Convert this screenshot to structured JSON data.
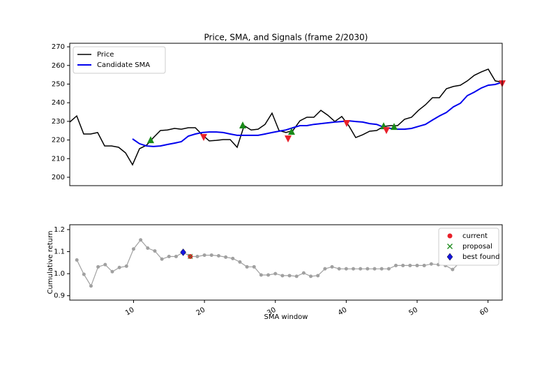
{
  "chart_data": [
    {
      "type": "line",
      "title": "Price, SMA, and Signals (frame 2/2030)",
      "x": [
        0,
        2,
        4,
        6,
        8,
        10,
        12,
        14,
        16,
        18,
        20,
        22,
        24,
        26,
        28,
        30,
        32,
        34,
        36,
        38,
        40,
        42,
        44,
        46,
        48,
        50,
        52,
        54,
        56,
        58,
        60,
        62,
        64,
        66,
        68,
        70,
        72,
        74,
        76,
        78,
        80,
        82,
        84,
        86,
        88,
        90,
        92,
        94,
        96,
        98,
        100,
        102,
        104,
        106,
        108,
        110,
        112,
        114,
        116,
        118,
        120,
        122,
        124
      ],
      "series": [
        {
          "name": "Price",
          "color": "#000000",
          "values": [
            229.6,
            232.9,
            223.2,
            223.2,
            224.0,
            216.8,
            216.8,
            216.1,
            213.1,
            206.7,
            215.3,
            217.2,
            221.3,
            225.1,
            225.4,
            226.2,
            225.8,
            226.6,
            226.6,
            222.8,
            219.5,
            219.8,
            220.2,
            220.2,
            216.1,
            227.7,
            225.4,
            225.8,
            228.4,
            234.4,
            225.1,
            224.0,
            225.1,
            230.3,
            232.2,
            232.2,
            235.9,
            233.3,
            229.9,
            232.6,
            227.7,
            221.3,
            222.8,
            224.7,
            225.1,
            227.3,
            227.7,
            227.7,
            231.1,
            232.2,
            235.9,
            238.9,
            242.7,
            242.7,
            247.5,
            248.7,
            249.4,
            251.7,
            254.7,
            256.5,
            258.0,
            251.7,
            251.0
          ]
        },
        {
          "name": "Candidate SMA",
          "color": "#0000ee",
          "values": [
            null,
            null,
            null,
            null,
            null,
            null,
            null,
            null,
            null,
            220.6,
            218.0,
            216.8,
            216.5,
            216.8,
            217.6,
            218.3,
            219.1,
            222.1,
            223.2,
            224.0,
            224.3,
            224.3,
            224.0,
            223.2,
            222.5,
            222.5,
            222.5,
            222.5,
            223.2,
            224.0,
            224.7,
            225.4,
            226.6,
            227.7,
            227.7,
            228.4,
            228.8,
            229.2,
            229.6,
            229.9,
            230.3,
            229.9,
            229.6,
            228.8,
            228.4,
            226.9,
            226.2,
            225.8,
            225.8,
            226.2,
            227.3,
            228.4,
            230.7,
            232.9,
            234.8,
            237.8,
            239.7,
            243.8,
            245.7,
            247.9,
            249.4,
            249.8,
            251.0
          ]
        }
      ],
      "signals": [
        {
          "marker": "^",
          "color": "#1a8a1a",
          "x": [
            23.2,
            49.6,
            63.6,
            90,
            93
          ],
          "values": [
            219.8,
            227.7,
            224.3,
            227.3,
            226.9
          ]
        },
        {
          "marker": "v",
          "color": "#e8202a",
          "x": [
            38.4,
            62.6,
            79.4,
            90.8,
            124
          ],
          "values": [
            221.7,
            220.9,
            229.2,
            225.4,
            250.5
          ]
        }
      ],
      "vline": {
        "x": 124,
        "color": "#cc2222"
      },
      "xlim": [
        0,
        124
      ],
      "ylim": [
        195.5,
        271.9
      ],
      "yticks": [
        200,
        210,
        220,
        230,
        240,
        250,
        260,
        270
      ],
      "legend": "upper left"
    },
    {
      "type": "line",
      "xlabel": "SMA window",
      "ylabel": "Cumulative return",
      "color": "#a0a0a0",
      "x": [
        2,
        3,
        4,
        5,
        6,
        7,
        8,
        9,
        10,
        11,
        12,
        13,
        14,
        15,
        16,
        17,
        18,
        19,
        20,
        21,
        22,
        23,
        24,
        25,
        26,
        27,
        28,
        29,
        30,
        31,
        32,
        33,
        34,
        35,
        36,
        37,
        38,
        39,
        40,
        41,
        42,
        43,
        44,
        45,
        46,
        47,
        48,
        49,
        50,
        51,
        52,
        53,
        54,
        55,
        56,
        57,
        58,
        59,
        60,
        61
      ],
      "values": [
        1.062,
        0.997,
        0.944,
        1.031,
        1.041,
        1.009,
        1.028,
        1.034,
        1.112,
        1.153,
        1.116,
        1.103,
        1.066,
        1.078,
        1.078,
        1.097,
        1.078,
        1.078,
        1.084,
        1.084,
        1.081,
        1.075,
        1.069,
        1.053,
        1.031,
        1.031,
        0.994,
        0.994,
        1.0,
        0.991,
        0.991,
        0.988,
        1.003,
        0.988,
        0.991,
        1.022,
        1.031,
        1.022,
        1.022,
        1.022,
        1.022,
        1.022,
        1.022,
        1.022,
        1.022,
        1.037,
        1.037,
        1.037,
        1.037,
        1.037,
        1.044,
        1.041,
        1.037,
        1.019,
        1.05,
        1.047,
        1.05,
        1.05,
        1.047,
        1.047
      ],
      "points": [
        {
          "name": "current",
          "marker": "o",
          "color": "#e8202a",
          "x": 18,
          "value": 1.078
        },
        {
          "name": "proposal",
          "marker": "x",
          "color": "#1a8a1a",
          "x": 18,
          "value": 1.078
        },
        {
          "name": "best found",
          "marker": "D",
          "color": "#1515e0",
          "x": 17,
          "value": 1.097
        }
      ],
      "xlim": [
        1,
        62
      ],
      "ylim": [
        0.88,
        1.222
      ],
      "xticks": [
        10,
        20,
        30,
        40,
        50,
        60
      ],
      "yticks": [
        0.9,
        {
          "value": 1,
          "label": "1.0"
        },
        1.1,
        1.2
      ],
      "legend": "upper right"
    }
  ]
}
